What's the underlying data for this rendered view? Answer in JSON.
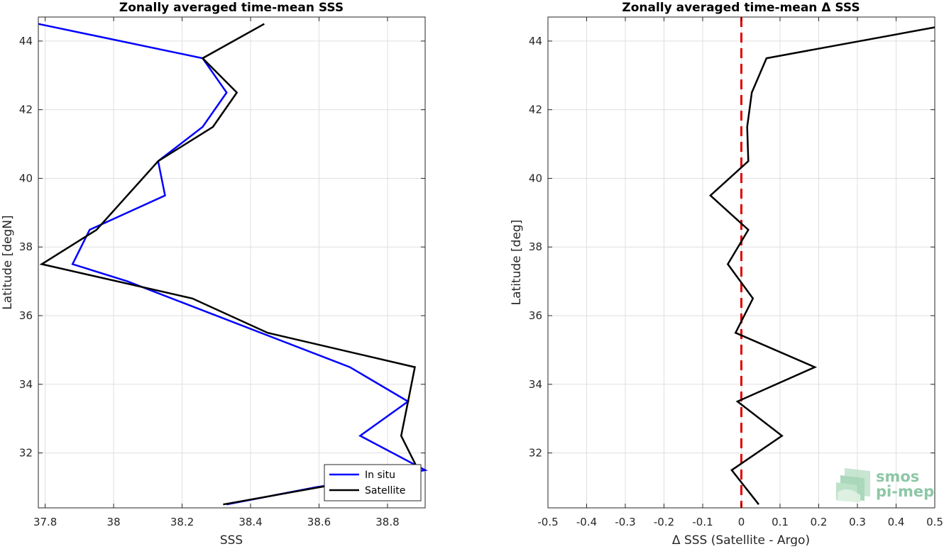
{
  "chart_data": [
    {
      "type": "line",
      "title": "Zonally averaged time-mean SSS",
      "xlabel": "SSS",
      "ylabel": "Latitude [degN]",
      "xlim": [
        37.78,
        38.91
      ],
      "ylim": [
        30.4,
        44.7
      ],
      "xticks": [
        37.8,
        38,
        38.2,
        38.4,
        38.6,
        38.8
      ],
      "xtick_labels": [
        "37.8",
        "38",
        "38.2",
        "38.4",
        "38.6",
        "38.8"
      ],
      "yticks": [
        32,
        34,
        36,
        38,
        40,
        42,
        44
      ],
      "ytick_labels": [
        "32",
        "34",
        "36",
        "38",
        "40",
        "42",
        "44"
      ],
      "grid": true,
      "legend_position": "bottom-right",
      "series": [
        {
          "name": "In situ",
          "color": "#0000ff",
          "x": [
            38.33,
            38.59,
            38.91,
            38.72,
            38.86,
            38.69,
            38.04,
            37.88,
            37.93,
            38.15,
            38.13,
            38.26,
            38.33,
            38.26,
            37.78
          ],
          "y": [
            30.5,
            31.0,
            31.5,
            32.5,
            33.5,
            34.5,
            37.0,
            37.5,
            38.5,
            39.5,
            40.5,
            41.5,
            42.5,
            43.5,
            44.5
          ]
        },
        {
          "name": "Satellite",
          "color": "#000000",
          "x": [
            38.32,
            38.6,
            38.89,
            38.84,
            38.86,
            38.88,
            38.45,
            38.23,
            37.79,
            37.95,
            38.04,
            38.13,
            38.29,
            38.36,
            38.26,
            38.44
          ],
          "y": [
            30.5,
            31.0,
            31.5,
            32.5,
            33.5,
            34.5,
            35.5,
            36.5,
            37.5,
            38.5,
            39.5,
            40.5,
            41.5,
            42.5,
            43.5,
            44.5
          ]
        }
      ]
    },
    {
      "type": "line",
      "title": "Zonally averaged time-mean Δ SSS",
      "xlabel": "Δ SSS (Satellite - Argo)",
      "ylabel": "Latitude [deg]",
      "xlim": [
        -0.5,
        0.5
      ],
      "ylim": [
        30.4,
        44.7
      ],
      "xticks": [
        -0.5,
        -0.4,
        -0.3,
        -0.2,
        -0.1,
        0,
        0.1,
        0.2,
        0.3,
        0.4,
        0.5
      ],
      "xtick_labels": [
        "-0.5",
        "-0.4",
        "-0.3",
        "-0.2",
        "-0.1",
        "0",
        "0.1",
        "0.2",
        "0.3",
        "0.4",
        "0.5"
      ],
      "yticks": [
        32,
        34,
        36,
        38,
        40,
        42,
        44
      ],
      "ytick_labels": [
        "32",
        "34",
        "36",
        "38",
        "40",
        "42",
        "44"
      ],
      "grid": true,
      "reference_line": {
        "x": 0,
        "color": "#e00000",
        "style": "dashed"
      },
      "series": [
        {
          "color": "#000000",
          "x": [
            0.045,
            -0.025,
            0.105,
            -0.01,
            0.19,
            -0.015,
            0.03,
            -0.035,
            0.018,
            -0.08,
            0.018,
            0.015,
            0.027,
            0.065,
            0.5
          ],
          "y": [
            30.5,
            31.5,
            32.5,
            33.5,
            34.5,
            35.5,
            36.5,
            37.5,
            38.5,
            39.5,
            40.5,
            41.5,
            42.5,
            43.5,
            44.4
          ]
        }
      ]
    }
  ],
  "logo": {
    "line1": "smos",
    "line2": "pi-mep"
  }
}
